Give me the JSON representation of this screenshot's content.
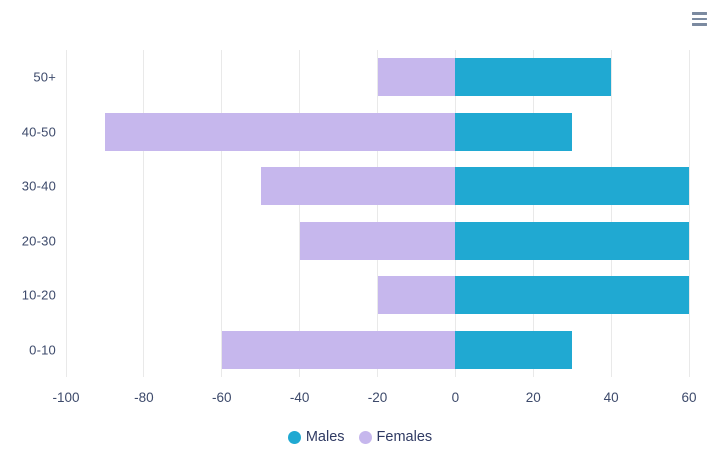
{
  "window": {
    "background": "#ffffff"
  },
  "toolbar": {
    "menu_icon": "hamburger-menu",
    "menu_icon_color": "#7b8aa0"
  },
  "chart_data": {
    "type": "bar",
    "orientation": "horizontal",
    "title": "",
    "xlabel": "",
    "ylabel": "",
    "categories": [
      "50+",
      "40-50",
      "30-40",
      "20-30",
      "10-20",
      "0-10"
    ],
    "series": [
      {
        "name": "Males",
        "color": "#20a9d2",
        "values": [
          40,
          30,
          60,
          60,
          60,
          30
        ]
      },
      {
        "name": "Females",
        "color": "#c6b7ed",
        "values": [
          -20,
          -90,
          -50,
          -40,
          -20,
          -60
        ]
      }
    ],
    "xticks": [
      -100,
      -80,
      -60,
      -40,
      -20,
      0,
      20,
      40,
      60
    ],
    "xlim": [
      -100,
      60
    ],
    "grid": true,
    "gridline_color": "#e9e9e9",
    "label_color": "#3d4a6b",
    "legend_position": "bottom",
    "legend": [
      "Males",
      "Females"
    ]
  }
}
